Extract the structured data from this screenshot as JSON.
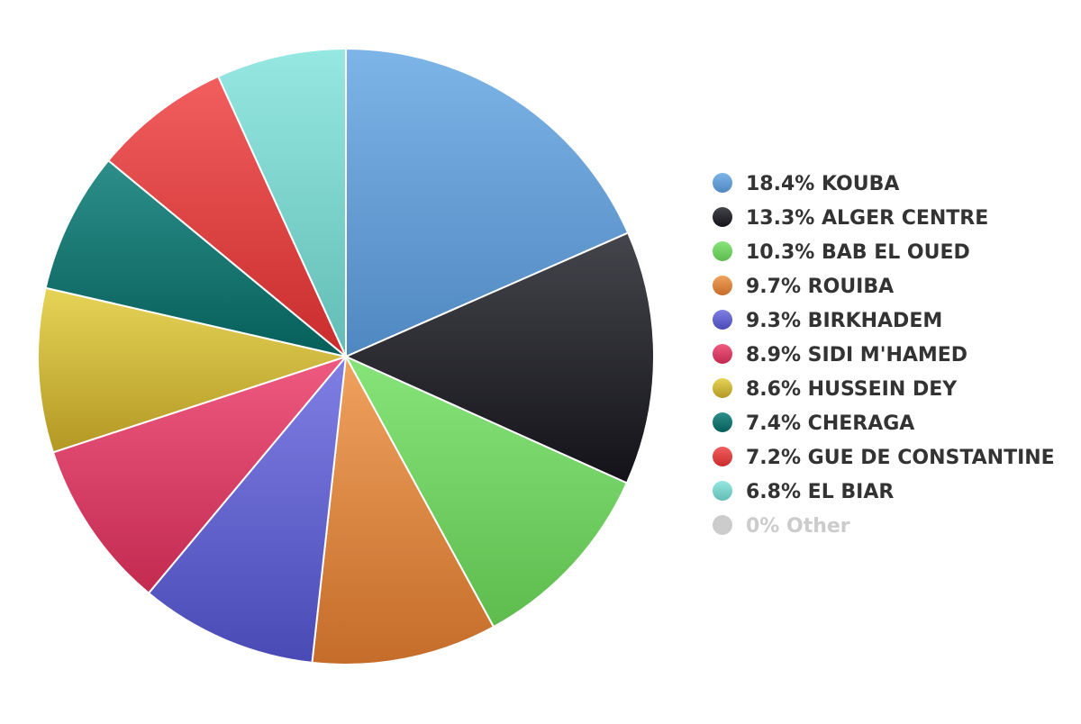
{
  "chart_data": {
    "type": "pie",
    "legend_position": "right",
    "slices": [
      {
        "label": "KOUBA",
        "value": 18.4,
        "display": "18.4% KOUBA",
        "color_top": "#7db5e8",
        "color_bottom": "#4f87c0"
      },
      {
        "label": "ALGER CENTRE",
        "value": 13.3,
        "display": "13.3% ALGER CENTRE",
        "color_top": "#45454c",
        "color_bottom": "#121218"
      },
      {
        "label": "BAB EL OUED",
        "value": 10.3,
        "display": "10.3% BAB EL OUED",
        "color_top": "#86e47a",
        "color_bottom": "#5ebc4e"
      },
      {
        "label": "ROUIBA",
        "value": 9.7,
        "display": "9.7% ROUIBA",
        "color_top": "#f0a25e",
        "color_bottom": "#c56c2a"
      },
      {
        "label": "BIRKHADEM",
        "value": 9.3,
        "display": "9.3% BIRKHADEM",
        "color_top": "#7f7fe4",
        "color_bottom": "#4a4ab6"
      },
      {
        "label": "SIDI M'HAMED",
        "value": 8.9,
        "display": "8.9% SIDI M'HAMED",
        "color_top": "#ef5a80",
        "color_bottom": "#c22a50"
      },
      {
        "label": "HUSSEIN DEY",
        "value": 8.6,
        "display": "8.6% HUSSEIN DEY",
        "color_top": "#e6d457",
        "color_bottom": "#b39824"
      },
      {
        "label": "CHERAGA",
        "value": 7.4,
        "display": "7.4% CHERAGA",
        "color_top": "#2d8f8a",
        "color_bottom": "#055e59"
      },
      {
        "label": "GUE DE CONSTANTINE",
        "value": 7.2,
        "display": "7.2% GUE DE CONSTANTINE",
        "color_top": "#f25e5e",
        "color_bottom": "#c92c2c"
      },
      {
        "label": "EL BIAR",
        "value": 6.8,
        "display": "6.8% EL BIAR",
        "color_top": "#96e8e2",
        "color_bottom": "#62bcb5"
      },
      {
        "label": "Other",
        "value": 0,
        "display": "0% Other",
        "color_top": "#cccccc",
        "color_bottom": "#cccccc",
        "hidden": true
      }
    ]
  }
}
